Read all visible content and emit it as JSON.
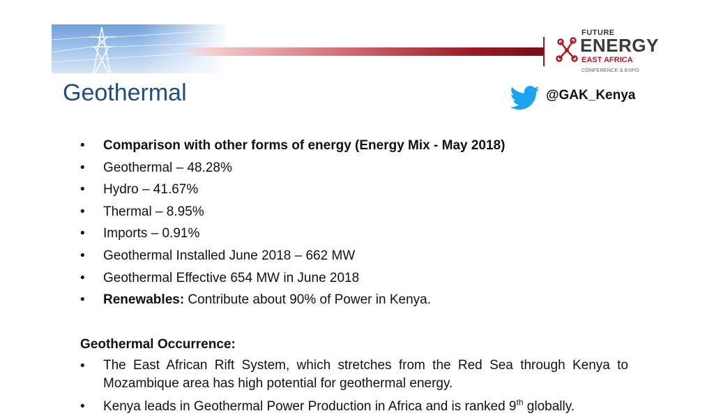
{
  "header": {
    "title": "Geothermal",
    "twitter_handle": "@GAK_Kenya"
  },
  "logo": {
    "line1": "FUTURE",
    "line2": "ENERGY",
    "line3": "EAST AFRICA",
    "line4": "CONFERENCE & EXPO",
    "accent_color": "#b0191f"
  },
  "colors": {
    "title": "#1f4e79",
    "bar_dark": "#7a0e16",
    "twitter_blue": "#1da1f2"
  },
  "bullets": [
    {
      "bold": "Comparison with other forms of energy (Energy Mix - May 2018)",
      "text": ""
    },
    {
      "bold": "",
      "text": "Geothermal –  48.28%"
    },
    {
      "bold": "",
      "text": "Hydro – 41.67%"
    },
    {
      "bold": "",
      "text": "Thermal – 8.95%"
    },
    {
      "bold": "",
      "text": "Imports – 0.91%"
    },
    {
      "bold": "",
      "text": "Geothermal Installed June 2018 – 662 MW"
    },
    {
      "bold": "",
      "text": "Geothermal Effective 654 MW in June 2018"
    },
    {
      "bold": "Renewables:",
      "text": " Contribute about 90% of Power in Kenya."
    }
  ],
  "occurrence": {
    "heading": "Geothermal Occurrence:",
    "item1_line1": "The East African Rift System, which stretches from the Red Sea through Kenya to",
    "item1_line2": "Mozambique area has high potential for geothermal energy.",
    "item2_before": "Kenya leads in Geothermal Power Production in Africa and is ranked 9",
    "item2_sup": "th",
    "item2_after": " globally."
  },
  "bullet_char": "•"
}
